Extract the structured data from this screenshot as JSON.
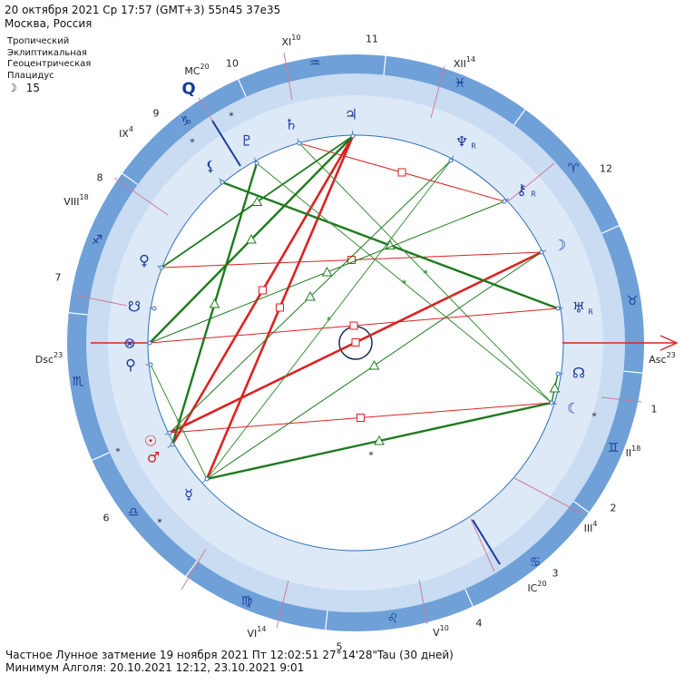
{
  "header": {
    "line1": "20 октября 2021  Ср  17:57 (GMT+3) 55n45  37e35",
    "line2": "Москва, Россия"
  },
  "settings": [
    "Тропический",
    "Эклиптикальная",
    "Геоцентрическая",
    "Плацидус"
  ],
  "moon_phase": {
    "symbol": "☽",
    "value": "15"
  },
  "footer": {
    "line1": "Частное Лунное затмение 19 ноября 2021 Пт 12:02:51 27°14'28\"Tau (30 дней)",
    "line2": "Минимум Алголя: 20.10.2021 12:12, 23.10.2021  9:01"
  },
  "angles": {
    "asc": "Asc",
    "asc_deg": "23",
    "dsc": "Dsc",
    "dsc_deg": "23",
    "mc": "MC",
    "mc_deg": "20",
    "ic": "IC",
    "ic_deg": "20"
  },
  "cusp_labels": [
    {
      "num": "II",
      "deg": "18"
    },
    {
      "num": "III",
      "deg": "4"
    },
    {
      "num": "V",
      "deg": "10"
    },
    {
      "num": "VI",
      "deg": "14"
    },
    {
      "num": "VIII",
      "deg": "18"
    },
    {
      "num": "IX",
      "deg": "4"
    },
    {
      "num": "XI",
      "deg": "10"
    },
    {
      "num": "XII",
      "deg": "14"
    }
  ],
  "house_numbers": [
    "1",
    "2",
    "3",
    "4",
    "5",
    "6",
    "7",
    "8",
    "9",
    "10",
    "11",
    "12"
  ],
  "signs": [
    "♉",
    "♊",
    "♋",
    "♌",
    "♍",
    "♎",
    "♏",
    "♐",
    "♑",
    "♒",
    "♓",
    "♈"
  ],
  "planets": [
    {
      "name": "moon",
      "glyph": "☽",
      "retro": ""
    },
    {
      "name": "uranus",
      "glyph": "♅",
      "retro": "R"
    },
    {
      "name": "chiron",
      "glyph": "⚷",
      "retro": "R"
    },
    {
      "name": "neptune",
      "glyph": "♆",
      "retro": "R"
    },
    {
      "name": "jupiter",
      "glyph": "♃",
      "retro": ""
    },
    {
      "name": "saturn",
      "glyph": "♄",
      "retro": ""
    },
    {
      "name": "pluto",
      "glyph": "♇",
      "retro": ""
    },
    {
      "name": "lilith",
      "glyph": "⚸",
      "retro": ""
    },
    {
      "name": "venus",
      "glyph": "♀",
      "retro": ""
    },
    {
      "name": "south-node",
      "glyph": "☋",
      "retro": ""
    },
    {
      "name": "part-of-fortune",
      "glyph": "⊗",
      "retro": ""
    },
    {
      "name": "selena",
      "glyph": "⚲",
      "retro": ""
    },
    {
      "name": "sun",
      "glyph": "☉",
      "retro": ""
    },
    {
      "name": "mars",
      "glyph": "♂",
      "retro": ""
    },
    {
      "name": "mercury",
      "glyph": "☿",
      "retro": ""
    },
    {
      "name": "north-node",
      "glyph": "☊",
      "retro": ""
    },
    {
      "name": "black-moon",
      "glyph": "☾",
      "retro": ""
    }
  ],
  "colors": {
    "ring_dark": "#6fa0d8",
    "ring_light": "#c9dcf2",
    "inner_fill": "#dde9f7",
    "square": "#dd2222",
    "trine": "#1f7a1f",
    "sextile": "#3b8f3b",
    "asc_axis": "#dd2222",
    "mc_axis": "#1a3a9a",
    "cusp": "#d27b9a"
  }
}
